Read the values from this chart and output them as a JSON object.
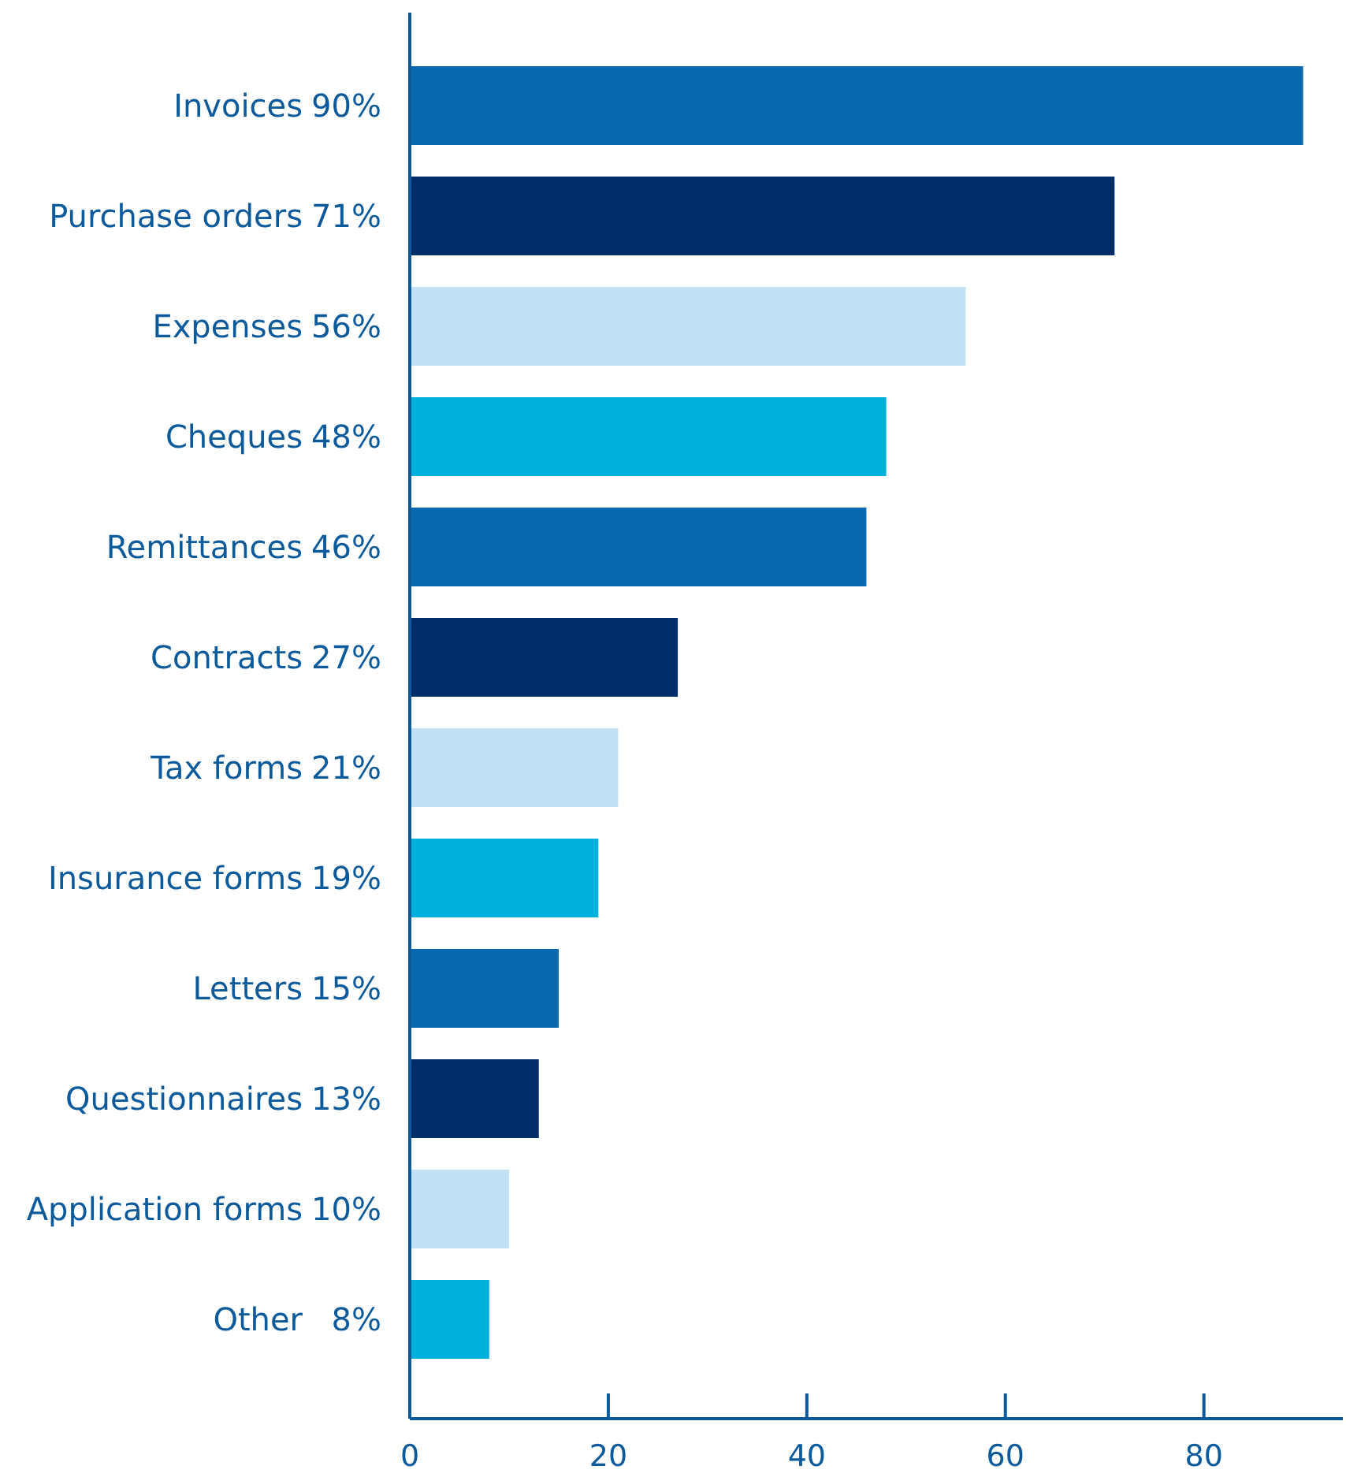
{
  "chart_data": {
    "type": "bar",
    "orientation": "horizontal",
    "categories": [
      "Invoices",
      "Purchase orders",
      "Expenses",
      "Cheques",
      "Remittances",
      "Contracts",
      "Tax forms",
      "Insurance forms",
      "Letters",
      "Questionnaires",
      "Application forms",
      "Other"
    ],
    "values": [
      90,
      71,
      56,
      48,
      46,
      27,
      21,
      19,
      15,
      13,
      10,
      8
    ],
    "value_labels": [
      "90%",
      "71%",
      "56%",
      "48%",
      "46%",
      "27%",
      "21%",
      "19%",
      "15%",
      "13%",
      "10%",
      "8%"
    ],
    "colors": [
      "#0868b0",
      "#002d6a",
      "#c3e1f5",
      "#00b0dc",
      "#0868b0",
      "#002d6a",
      "#c3e1f5",
      "#00b0dc",
      "#0868b0",
      "#002d6a",
      "#c3e1f5",
      "#00b0dc"
    ],
    "xlim": [
      0,
      94
    ],
    "xticks": [
      0,
      20,
      40,
      60,
      80
    ]
  }
}
